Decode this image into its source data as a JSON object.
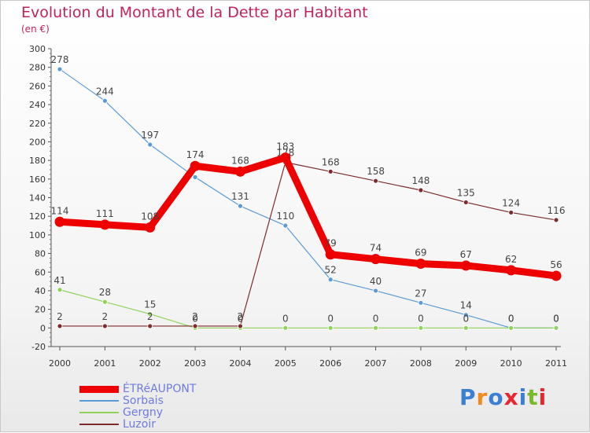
{
  "title": "Evolution du Montant de la Dette par Habitant",
  "subtitle": "(en €)",
  "logo": {
    "text": "Proxiti",
    "colors": [
      "#3b7fd4",
      "#f08a1c",
      "#3b7fd4",
      "#e8262d",
      "#3b7fd4",
      "#7ab929",
      "#e8262d"
    ]
  },
  "chart_data": {
    "type": "line",
    "x": [
      "2000",
      "2001",
      "2002",
      "2003",
      "2004",
      "2005",
      "2006",
      "2007",
      "2008",
      "2009",
      "2010",
      "2011"
    ],
    "ylim": [
      -20,
      300
    ],
    "yticks": [
      -20,
      0,
      20,
      40,
      60,
      80,
      100,
      120,
      140,
      160,
      180,
      200,
      220,
      240,
      260,
      280,
      300
    ],
    "grid": false,
    "legend_position": "bottom-left",
    "series": [
      {
        "name": "Sorbais",
        "color": "#5b9bd5",
        "values": [
          278,
          244,
          197,
          162,
          131,
          110,
          52,
          40,
          27,
          14,
          0,
          0
        ],
        "labels": [
          "278",
          "244",
          "197",
          "",
          "131",
          "110",
          "52",
          "40",
          "27",
          "14",
          "0",
          "0"
        ]
      },
      {
        "name": "Gergny",
        "color": "#8fd45a",
        "values": [
          41,
          28,
          15,
          0,
          0,
          0,
          0,
          0,
          0,
          0,
          0,
          0
        ],
        "labels": [
          "41",
          "28",
          "15",
          "0",
          "0",
          "0",
          "0",
          "0",
          "0",
          "0",
          "0",
          "0"
        ]
      },
      {
        "name": "Luzoir",
        "color": "#7d2b2b",
        "values": [
          2,
          2,
          2,
          2,
          2,
          178,
          168,
          158,
          148,
          135,
          124,
          116
        ],
        "labels": [
          "2",
          "2",
          "2",
          "2",
          "2",
          "178",
          "168",
          "158",
          "148",
          "135",
          "124",
          "116"
        ]
      },
      {
        "name": "ÉTRéAUPONT",
        "color": "#ee0000",
        "values": [
          114,
          111,
          108,
          174,
          168,
          183,
          79,
          74,
          69,
          67,
          62,
          56
        ],
        "labels": [
          "114",
          "111",
          "108",
          "174",
          "168",
          "183",
          "79",
          "74",
          "69",
          "67",
          "62",
          "56"
        ]
      }
    ],
    "legend": [
      {
        "name": "ÉTRéAUPONT",
        "color": "#ee0000",
        "width": 9
      },
      {
        "name": "Sorbais",
        "color": "#5b9bd5",
        "width": 2
      },
      {
        "name": "Gergny",
        "color": "#8fd45a",
        "width": 2
      },
      {
        "name": "Luzoir",
        "color": "#7d2b2b",
        "width": 2
      }
    ]
  }
}
